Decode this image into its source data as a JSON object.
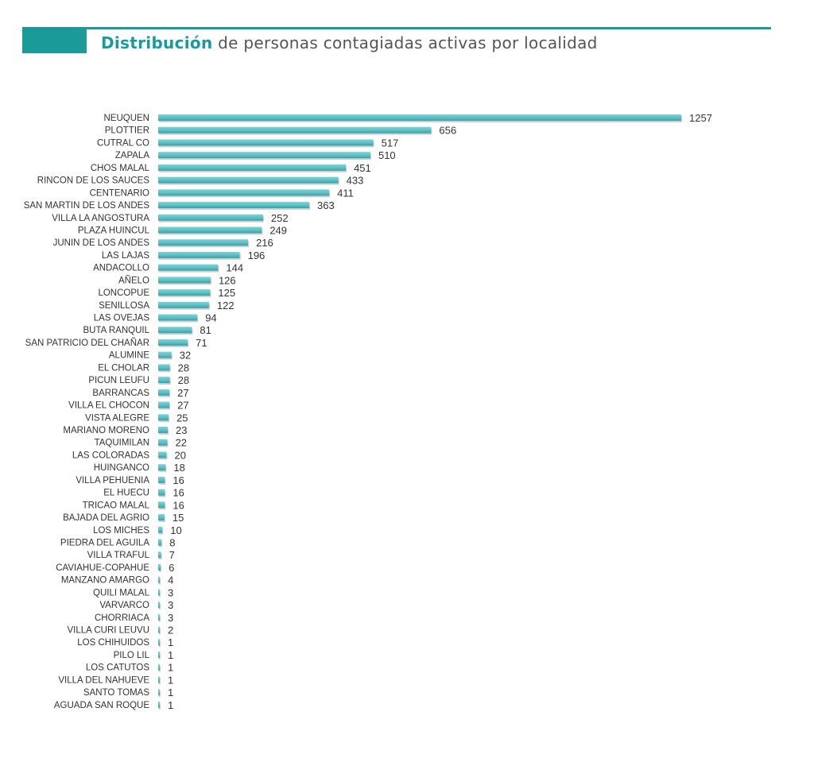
{
  "header": {
    "title_accent": "Distribución",
    "title_rest": " de personas contagiadas activas por localidad",
    "accent_color": "#1a9a98"
  },
  "chart_data": {
    "type": "bar",
    "orientation": "horizontal",
    "title": "Distribución de personas contagiadas activas por localidad",
    "xlabel": "",
    "ylabel": "",
    "grid": false,
    "bar_color": "#5bbfc3",
    "categories": [
      "NEUQUEN",
      "PLOTTIER",
      "CUTRAL CO",
      "ZAPALA",
      "CHOS MALAL",
      "RINCON DE LOS SAUCES",
      "CENTENARIO",
      "SAN MARTIN DE LOS ANDES",
      "VILLA LA ANGOSTURA",
      "PLAZA HUINCUL",
      "JUNIN DE LOS ANDES",
      "LAS LAJAS",
      "ANDACOLLO",
      "AÑELO",
      "LONCOPUE",
      "SENILLOSA",
      "LAS OVEJAS",
      "BUTA RANQUIL",
      "SAN PATRICIO DEL CHAÑAR",
      "ALUMINE",
      "EL CHOLAR",
      "PICUN LEUFU",
      "BARRANCAS",
      "VILLA EL CHOCON",
      "VISTA ALEGRE",
      "MARIANO MORENO",
      "TAQUIMILAN",
      "LAS COLORADAS",
      "HUINGANCO",
      "VILLA PEHUENIA",
      "EL HUECU",
      "TRICAO MALAL",
      "BAJADA DEL AGRIO",
      "LOS MICHES",
      "PIEDRA DEL AGUILA",
      "VILLA TRAFUL",
      "CAVIAHUE-COPAHUE",
      "MANZANO AMARGO",
      "QUILI MALAL",
      "VARVARCO",
      "CHORRIACA",
      "VILLA CURI LEUVU",
      "LOS CHIHUIDOS",
      "PILO LIL",
      "LOS CATUTOS",
      "VILLA DEL NAHUEVE",
      "SANTO TOMAS",
      "AGUADA SAN ROQUE"
    ],
    "values": [
      1257,
      656,
      517,
      510,
      451,
      433,
      411,
      363,
      252,
      249,
      216,
      196,
      144,
      126,
      125,
      122,
      94,
      81,
      71,
      32,
      28,
      28,
      27,
      27,
      25,
      23,
      22,
      20,
      18,
      16,
      16,
      16,
      15,
      10,
      8,
      7,
      6,
      4,
      3,
      3,
      3,
      2,
      1,
      1,
      1,
      1,
      1,
      1
    ],
    "xlim": [
      0,
      1257
    ]
  }
}
